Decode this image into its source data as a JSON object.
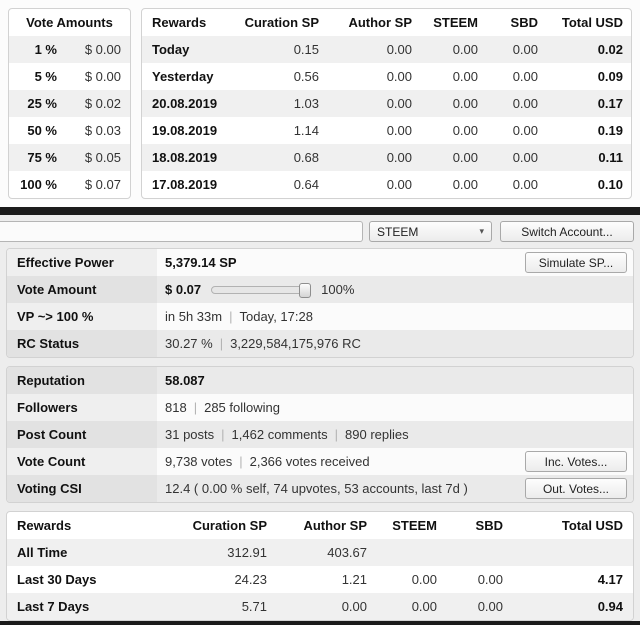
{
  "ui": {
    "separator": "|",
    "caret": "▾"
  },
  "vote_amounts": {
    "title": "Vote Amounts",
    "rows": [
      {
        "percent": "1 %",
        "amount": "$ 0.00"
      },
      {
        "percent": "5 %",
        "amount": "$ 0.00"
      },
      {
        "percent": "25 %",
        "amount": "$ 0.02"
      },
      {
        "percent": "50 %",
        "amount": "$ 0.03"
      },
      {
        "percent": "75 %",
        "amount": "$ 0.05"
      },
      {
        "percent": "100 %",
        "amount": "$ 0.07"
      }
    ]
  },
  "daily_rewards": {
    "headers": {
      "label": "Rewards",
      "curation": "Curation SP",
      "author": "Author SP",
      "steem": "STEEM",
      "sbd": "SBD",
      "total": "Total USD"
    },
    "rows": [
      {
        "label": "Today",
        "curation": "0.15",
        "author": "0.00",
        "steem": "0.00",
        "sbd": "0.00",
        "total": "0.02"
      },
      {
        "label": "Yesterday",
        "curation": "0.56",
        "author": "0.00",
        "steem": "0.00",
        "sbd": "0.00",
        "total": "0.09"
      },
      {
        "label": "20.08.2019",
        "curation": "1.03",
        "author": "0.00",
        "steem": "0.00",
        "sbd": "0.00",
        "total": "0.17"
      },
      {
        "label": "19.08.2019",
        "curation": "1.14",
        "author": "0.00",
        "steem": "0.00",
        "sbd": "0.00",
        "total": "0.19"
      },
      {
        "label": "18.08.2019",
        "curation": "0.68",
        "author": "0.00",
        "steem": "0.00",
        "sbd": "0.00",
        "total": "0.11"
      },
      {
        "label": "17.08.2019",
        "curation": "0.64",
        "author": "0.00",
        "steem": "0.00",
        "sbd": "0.00",
        "total": "0.10"
      }
    ]
  },
  "toolbar": {
    "coin": "STEEM",
    "switch_account": "Switch Account..."
  },
  "power": {
    "effective_power": {
      "label": "Effective Power",
      "value": "5,379.14 SP",
      "button": "Simulate SP..."
    },
    "vote_amount": {
      "label": "Vote Amount",
      "value": "$ 0.07",
      "percent": "100%"
    },
    "vp": {
      "label": "VP ~> 100 %",
      "remaining": "in 5h 33m",
      "at": "Today, 17:28"
    },
    "rc": {
      "label": "RC Status",
      "percent": "30.27 %",
      "value": "3,229,584,175,976 RC"
    }
  },
  "stats": {
    "reputation": {
      "label": "Reputation",
      "value": "58.087"
    },
    "followers": {
      "label": "Followers",
      "count": "818",
      "following": "285 following"
    },
    "posts": {
      "label": "Post Count",
      "posts": "31 posts",
      "comments": "1,462 comments",
      "replies": "890 replies"
    },
    "votes": {
      "label": "Vote Count",
      "votes": "9,738 votes",
      "received": "2,366 votes received",
      "button": "Inc. Votes..."
    },
    "csi": {
      "label": "Voting CSI",
      "value": "12.4 ( 0.00 % self, 74 upvotes, 53 accounts, last 7d )",
      "button": "Out. Votes..."
    }
  },
  "total_rewards": {
    "headers": {
      "label": "Rewards",
      "curation": "Curation SP",
      "author": "Author SP",
      "steem": "STEEM",
      "sbd": "SBD",
      "total": "Total USD"
    },
    "rows": [
      {
        "label": "All Time",
        "curation": "312.91",
        "author": "403.67",
        "steem": "",
        "sbd": "",
        "total": ""
      },
      {
        "label": "Last 30 Days",
        "curation": "24.23",
        "author": "1.21",
        "steem": "0.00",
        "sbd": "0.00",
        "total": "4.17"
      },
      {
        "label": "Last 7 Days",
        "curation": "5.71",
        "author": "0.00",
        "steem": "0.00",
        "sbd": "0.00",
        "total": "0.94"
      }
    ]
  },
  "colors": {
    "divider": "#1b1b1b",
    "stripe": "#f0f0f0",
    "accent_border": "#d2d2d2"
  }
}
